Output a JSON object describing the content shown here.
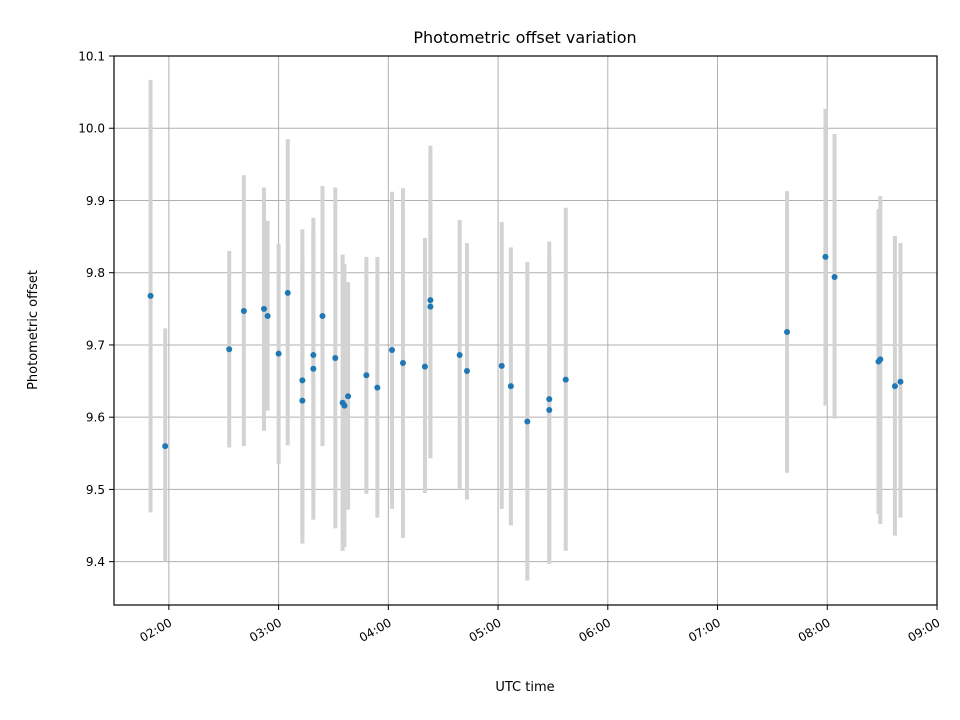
{
  "chart_data": {
    "type": "scatter",
    "title": "Photometric offset variation",
    "xlabel": "UTC time",
    "ylabel": "Photometric offset",
    "x_unit": "UTC time (HH:MM)",
    "xlim": [
      "01:30",
      "09:00"
    ],
    "ylim": [
      9.34,
      10.1
    ],
    "x_ticks": [
      "02:00",
      "03:00",
      "04:00",
      "05:00",
      "06:00",
      "07:00",
      "08:00",
      "09:00"
    ],
    "y_ticks": [
      "9.4",
      "9.5",
      "9.6",
      "9.7",
      "9.8",
      "9.9",
      "10.0",
      "10.1"
    ],
    "x_tick_rotation_deg": 30,
    "grid": true,
    "marker_color": "#1f77b4",
    "errorbar_color": "#d3d3d3",
    "points": [
      {
        "x": "01:50",
        "y": 9.768,
        "ymin": 9.468,
        "ymax": 10.067
      },
      {
        "x": "01:58",
        "y": 9.56,
        "ymin": 9.4,
        "ymax": 9.723
      },
      {
        "x": "02:33",
        "y": 9.694,
        "ymin": 9.558,
        "ymax": 9.83
      },
      {
        "x": "02:41",
        "y": 9.747,
        "ymin": 9.56,
        "ymax": 9.935
      },
      {
        "x": "02:52",
        "y": 9.75,
        "ymin": 9.581,
        "ymax": 9.918
      },
      {
        "x": "02:54",
        "y": 9.74,
        "ymin": 9.609,
        "ymax": 9.872
      },
      {
        "x": "03:00",
        "y": 9.688,
        "ymin": 9.535,
        "ymax": 9.84
      },
      {
        "x": "03:05",
        "y": 9.772,
        "ymin": 9.561,
        "ymax": 9.985
      },
      {
        "x": "03:13",
        "y": 9.651,
        "ymin": 9.43,
        "ymax": 9.86
      },
      {
        "x": "03:13",
        "y": 9.623,
        "ymin": 9.425,
        "ymax": 9.82
      },
      {
        "x": "03:19",
        "y": 9.686,
        "ymin": 9.495,
        "ymax": 9.858
      },
      {
        "x": "03:19",
        "y": 9.667,
        "ymin": 9.458,
        "ymax": 9.876
      },
      {
        "x": "03:24",
        "y": 9.74,
        "ymin": 9.56,
        "ymax": 9.92
      },
      {
        "x": "03:31",
        "y": 9.682,
        "ymin": 9.446,
        "ymax": 9.918
      },
      {
        "x": "03:35",
        "y": 9.62,
        "ymin": 9.415,
        "ymax": 9.825
      },
      {
        "x": "03:36",
        "y": 9.616,
        "ymin": 9.42,
        "ymax": 9.812
      },
      {
        "x": "03:38",
        "y": 9.629,
        "ymin": 9.472,
        "ymax": 9.787
      },
      {
        "x": "03:48",
        "y": 9.658,
        "ymin": 9.494,
        "ymax": 9.822
      },
      {
        "x": "03:54",
        "y": 9.641,
        "ymin": 9.461,
        "ymax": 9.822
      },
      {
        "x": "04:02",
        "y": 9.693,
        "ymin": 9.473,
        "ymax": 9.912
      },
      {
        "x": "04:08",
        "y": 9.675,
        "ymin": 9.433,
        "ymax": 9.917
      },
      {
        "x": "04:20",
        "y": 9.67,
        "ymin": 9.495,
        "ymax": 9.848
      },
      {
        "x": "04:23",
        "y": 9.762,
        "ymin": 9.546,
        "ymax": 9.976
      },
      {
        "x": "04:23",
        "y": 9.753,
        "ymin": 9.543,
        "ymax": 9.964
      },
      {
        "x": "04:39",
        "y": 9.686,
        "ymin": 9.5,
        "ymax": 9.873
      },
      {
        "x": "04:43",
        "y": 9.664,
        "ymin": 9.486,
        "ymax": 9.841
      },
      {
        "x": "05:02",
        "y": 9.671,
        "ymin": 9.473,
        "ymax": 9.87
      },
      {
        "x": "05:07",
        "y": 9.643,
        "ymin": 9.45,
        "ymax": 9.835
      },
      {
        "x": "05:16",
        "y": 9.594,
        "ymin": 9.374,
        "ymax": 9.815
      },
      {
        "x": "05:28",
        "y": 9.625,
        "ymin": 9.405,
        "ymax": 9.843
      },
      {
        "x": "05:28",
        "y": 9.61,
        "ymin": 9.397,
        "ymax": 9.822
      },
      {
        "x": "05:37",
        "y": 9.652,
        "ymin": 9.415,
        "ymax": 9.89
      },
      {
        "x": "07:38",
        "y": 9.718,
        "ymin": 9.523,
        "ymax": 9.913
      },
      {
        "x": "07:59",
        "y": 9.822,
        "ymin": 9.616,
        "ymax": 10.027
      },
      {
        "x": "08:04",
        "y": 9.794,
        "ymin": 9.598,
        "ymax": 9.992
      },
      {
        "x": "08:28",
        "y": 9.677,
        "ymin": 9.466,
        "ymax": 9.888
      },
      {
        "x": "08:29",
        "y": 9.68,
        "ymin": 9.452,
        "ymax": 9.906
      },
      {
        "x": "08:37",
        "y": 9.643,
        "ymin": 9.436,
        "ymax": 9.851
      },
      {
        "x": "08:40",
        "y": 9.649,
        "ymin": 9.461,
        "ymax": 9.841
      }
    ]
  }
}
